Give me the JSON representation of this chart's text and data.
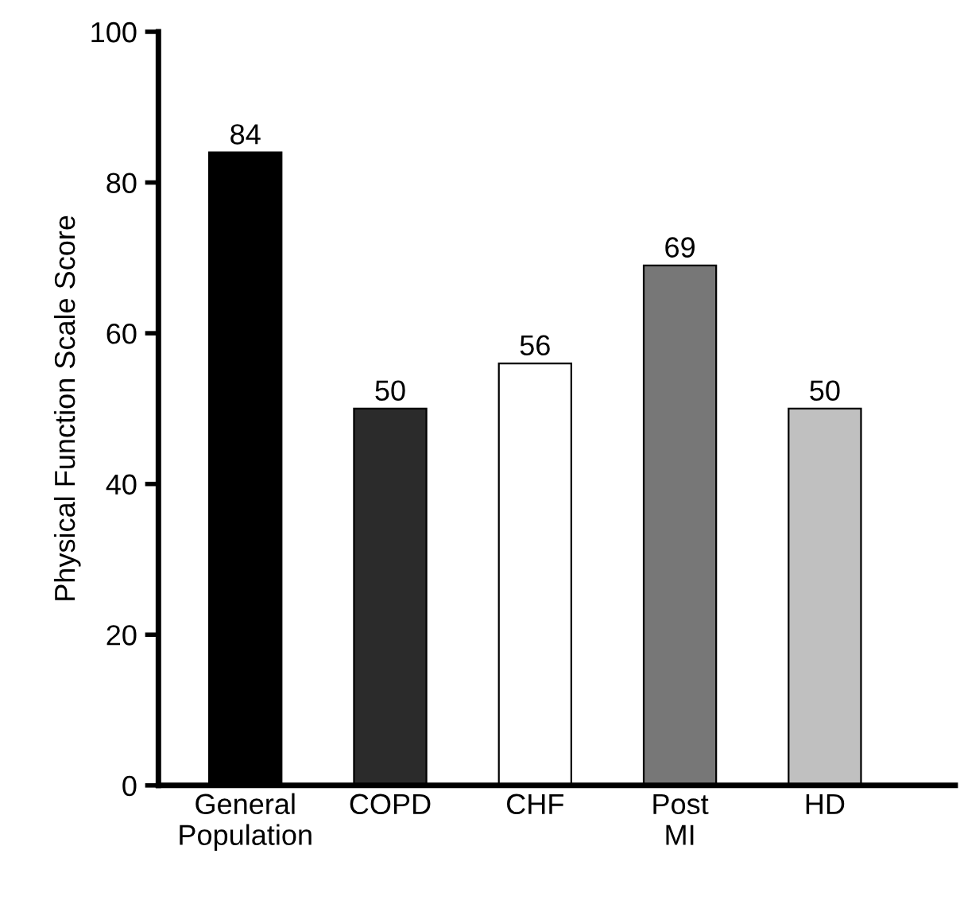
{
  "chart_data": {
    "type": "bar",
    "ylabel": "Physical Function Scale Score",
    "categories": [
      "General\nPopulation",
      "COPD",
      "CHF",
      "Post\nMI",
      "HD"
    ],
    "values": [
      84,
      50,
      56,
      69,
      50
    ],
    "colors": [
      "#000000",
      "#2b2b2b",
      "#ffffff",
      "#777777",
      "#c0c0c0"
    ],
    "ylim": [
      0,
      100
    ],
    "yticks": [
      0,
      20,
      40,
      60,
      80,
      100
    ],
    "grid": false,
    "data_labels": true
  }
}
